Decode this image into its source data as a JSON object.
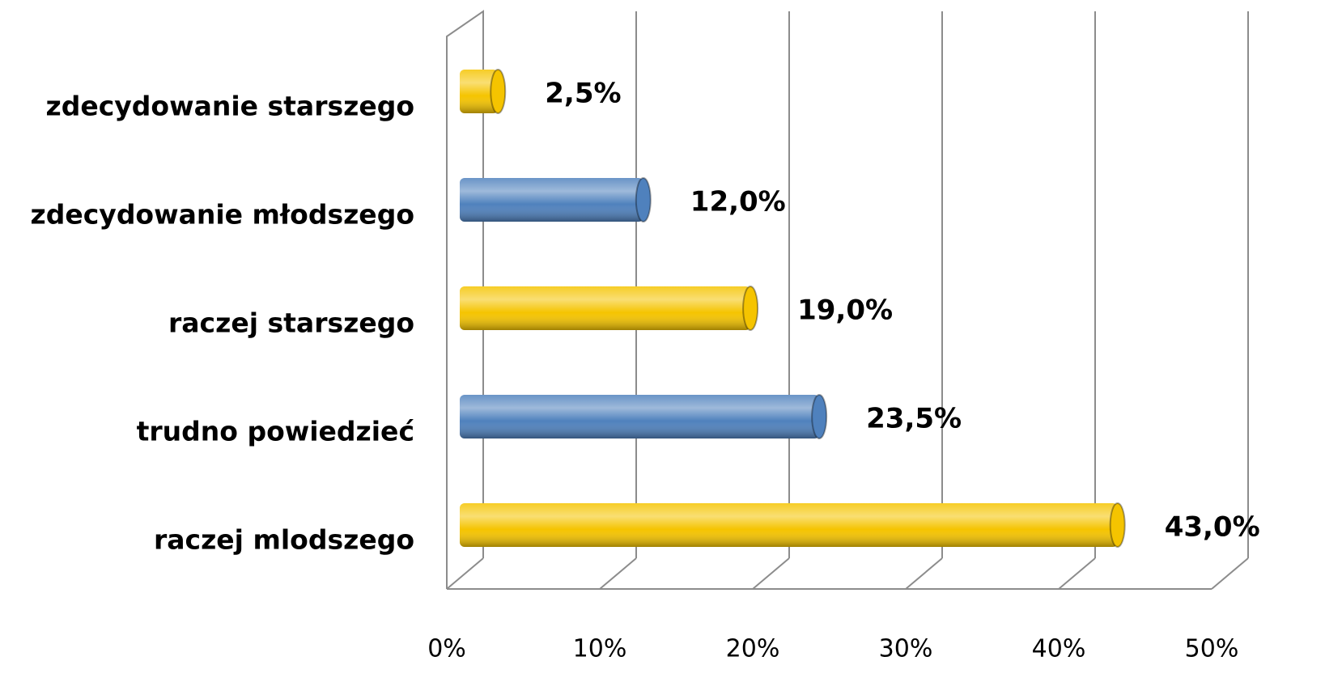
{
  "chart_data": {
    "type": "bar",
    "orientation": "horizontal",
    "categories": [
      "zdecydowanie starszego",
      "zdecydowanie młodszego",
      "raczej starszego",
      "trudno powiedzieć",
      "raczej mlodszego"
    ],
    "values": [
      2.5,
      12.0,
      19.0,
      23.5,
      43.0
    ],
    "value_labels": [
      "2,5%",
      "12,0%",
      "19,0%",
      "23,5%",
      "43,0%"
    ],
    "colors": [
      "#f5c400",
      "#4f81bd",
      "#f5c400",
      "#4f81bd",
      "#f5c400"
    ],
    "xlim": [
      0,
      50
    ],
    "xticks": [
      {
        "value": 0,
        "label": "0%"
      },
      {
        "value": 10,
        "label": "10%"
      },
      {
        "value": 20,
        "label": "20%"
      },
      {
        "value": 30,
        "label": "30%"
      },
      {
        "value": 40,
        "label": "40%"
      },
      {
        "value": 50,
        "label": "50%"
      }
    ],
    "grid": true
  }
}
